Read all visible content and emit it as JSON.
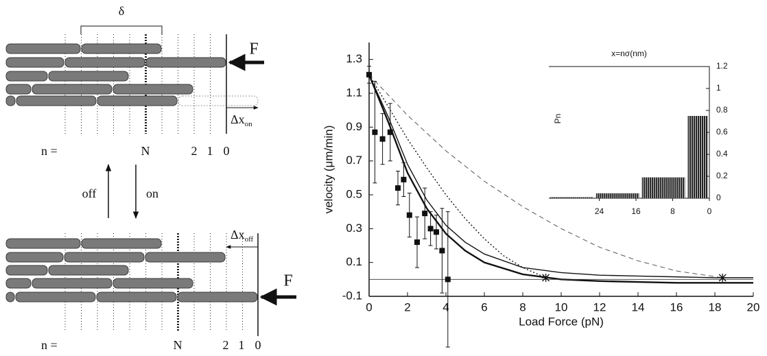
{
  "diagram": {
    "delta": "δ",
    "force_top": "F",
    "force_bottom": "F",
    "dx_on": {
      "label": "Δx",
      "sub": "on"
    },
    "dx_off": {
      "label": "Δx",
      "sub": "off"
    },
    "n_top": "n =",
    "n_bottom": "n =",
    "top_labels": [
      "N",
      "2",
      "1",
      "0"
    ],
    "bottom_labels": [
      "N",
      "2",
      "1",
      "0"
    ],
    "off": "off",
    "on": "on"
  },
  "chart_data": [
    {
      "type": "line",
      "xlabel": "Load Force (pN)",
      "ylabel": "velocity (μm/min)",
      "xlim": [
        0,
        20
      ],
      "ylim": [
        -0.1,
        1.4
      ],
      "xticks": [
        0,
        2,
        4,
        6,
        8,
        10,
        12,
        14,
        16,
        18,
        20
      ],
      "yticks": [
        -0.1,
        0.1,
        0.3,
        0.5,
        0.7,
        0.9,
        1.1,
        1.3
      ],
      "points": {
        "x": [
          0,
          0.3,
          0.7,
          1.1,
          1.5,
          1.8,
          2.1,
          2.5,
          2.9,
          3.2,
          3.5,
          3.8,
          4.1
        ],
        "values": [
          1.21,
          0.87,
          0.83,
          0.87,
          0.54,
          0.59,
          0.38,
          0.22,
          0.39,
          0.3,
          0.28,
          0.17,
          0.0
        ],
        "errors": [
          0.05,
          0.3,
          0.15,
          0.17,
          0.1,
          0.1,
          0.13,
          0.15,
          0.15,
          0.1,
          0.1,
          0.25,
          0.4
        ],
        "color": "#111111"
      },
      "series": [
        {
          "x": [
            0,
            1,
            2,
            3,
            4,
            5,
            6,
            8,
            10,
            12,
            14,
            16,
            18,
            20
          ],
          "values": [
            1.21,
            0.93,
            0.63,
            0.42,
            0.27,
            0.17,
            0.1,
            0.03,
            0.0,
            -0.01,
            -0.015,
            -0.02,
            -0.02,
            -0.02
          ],
          "color": "#111111",
          "dash": "solid",
          "width": 2.4
        },
        {
          "x": [
            0,
            1,
            2,
            3,
            4,
            5,
            6,
            8,
            10,
            12,
            14,
            16,
            18,
            20
          ],
          "values": [
            1.21,
            0.96,
            0.68,
            0.47,
            0.32,
            0.22,
            0.15,
            0.07,
            0.04,
            0.025,
            0.02,
            0.015,
            0.01,
            0.01
          ],
          "color": "#111111",
          "dash": "solid",
          "width": 1.4
        },
        {
          "x": [
            0,
            1,
            2,
            3,
            4,
            5,
            6,
            7,
            8,
            9.2
          ],
          "values": [
            1.21,
            1.02,
            0.83,
            0.66,
            0.5,
            0.36,
            0.24,
            0.14,
            0.07,
            0.01
          ],
          "color": "#111111",
          "dash": "dotted",
          "width": 1.4
        },
        {
          "x": [
            0,
            2,
            4,
            6,
            8,
            10,
            12,
            14,
            16,
            18.4
          ],
          "values": [
            1.21,
            0.97,
            0.76,
            0.58,
            0.43,
            0.3,
            0.19,
            0.11,
            0.05,
            0.01
          ],
          "color": "#555555",
          "dash": "dashed",
          "width": 1
        },
        {
          "x": [
            0,
            20
          ],
          "values": [
            0,
            0
          ],
          "color": "#333333",
          "dash": "solid",
          "width": 0.8
        }
      ],
      "markers": {
        "x": [
          9.2,
          18.4
        ],
        "values": [
          0.01,
          0.01
        ],
        "color": "#111111"
      }
    },
    {
      "type": "histogram",
      "title": "x=nσ(nm)",
      "ylabel": "Pn",
      "bins": [
        35,
        25,
        15,
        5,
        0
      ],
      "values": [
        0.01,
        0.045,
        0.19,
        0.75
      ],
      "color": "#222222",
      "xlim": [
        35,
        0
      ],
      "ylim": [
        0,
        1.2
      ],
      "xticks": [
        24,
        16,
        8,
        0
      ],
      "yticks": [
        0,
        0.2,
        0.4,
        0.6,
        0.8,
        1,
        1.2
      ]
    }
  ]
}
